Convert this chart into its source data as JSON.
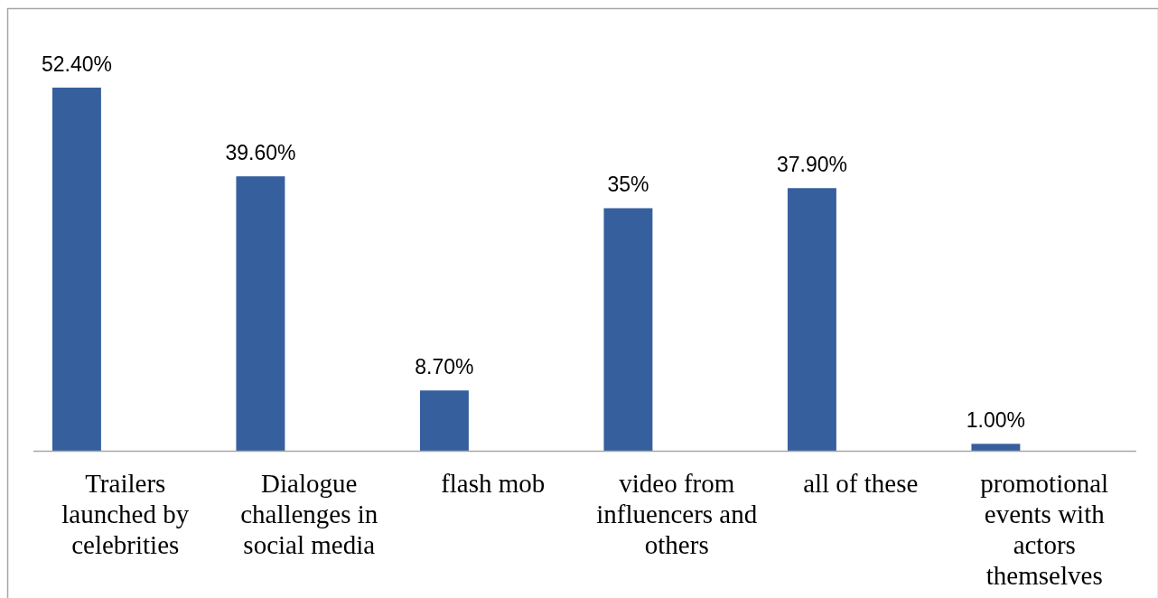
{
  "chart_data": {
    "type": "bar",
    "categories": [
      "Trailers launched by celebrities",
      "Dialogue challenges in social media",
      "flash mob",
      "video from influencers and others",
      "all of these",
      "promotional events with actors themselves"
    ],
    "values": [
      52.4,
      39.6,
      8.7,
      35,
      37.9,
      1
    ],
    "value_labels": [
      "52.40%",
      "39.60%",
      "8.70%",
      "35%",
      "37.90%",
      "1.00%"
    ],
    "color": "#365f9e"
  }
}
